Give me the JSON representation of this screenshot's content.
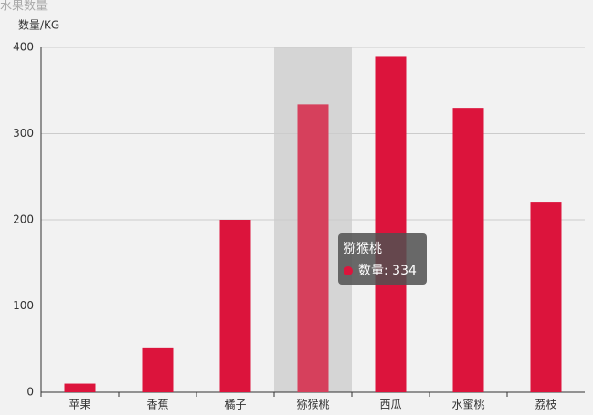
{
  "chart_data": {
    "type": "bar",
    "title": "水果数量",
    "y_axis_label": "数量/KG",
    "categories": [
      "苹果",
      "香蕉",
      "橘子",
      "猕猴桃",
      "西瓜",
      "水蜜桃",
      "荔枝"
    ],
    "series": [
      {
        "name": "数量",
        "color": "#dc143c",
        "values": [
          10,
          52,
          200,
          334,
          390,
          330,
          220
        ]
      }
    ],
    "ylim": [
      0,
      400
    ],
    "yticks": [
      0,
      100,
      200,
      300,
      400
    ],
    "grid": true,
    "highlight_index": 3,
    "highlight_color": "#d6405c"
  }
}
